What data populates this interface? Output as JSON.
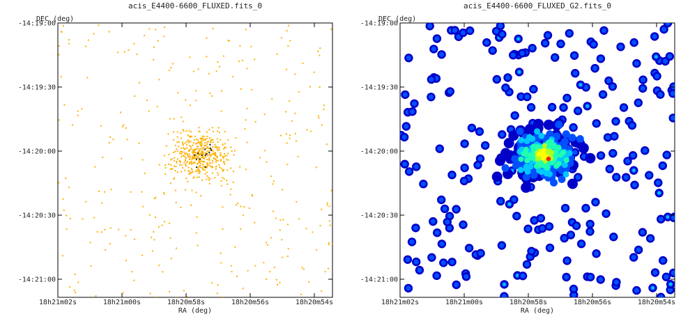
{
  "chart_data": [
    {
      "type": "scatter",
      "title": "acis_E4400-6600_FLUXED.fits_0",
      "xlabel": "RA (deg)",
      "ylabel": "DEC (deg)",
      "xticks": [
        "18h21m02s",
        "18h21m00s",
        "18h20m58s",
        "18h20m56s",
        "18h20m54s"
      ],
      "yticks": [
        "-14:19:00",
        "-14:19:30",
        "-14:20:00",
        "-14:20:30",
        "-14:21:00"
      ],
      "colormap": [
        "#ffb000",
        "#1a1a1a"
      ],
      "seed": 1
    },
    {
      "type": "heatmap",
      "title": "acis_E4400-6600_FLUXED_G2.fits_0",
      "xlabel": "RA (deg)",
      "ylabel": "DEC (deg)",
      "xticks": [
        "18h21m02s",
        "18h21m00s",
        "18h20m58s",
        "18h20m56s",
        "18h20m54s"
      ],
      "yticks": [
        "-14:19:00",
        "-14:19:30",
        "-14:20:00",
        "-14:20:30",
        "-14:21:00"
      ],
      "colormap": [
        "#0000c8",
        "#0050ff",
        "#00c8ff",
        "#20ffb0",
        "#b0ff20",
        "#ffff00",
        "#ff2000"
      ],
      "seed": 7
    }
  ]
}
